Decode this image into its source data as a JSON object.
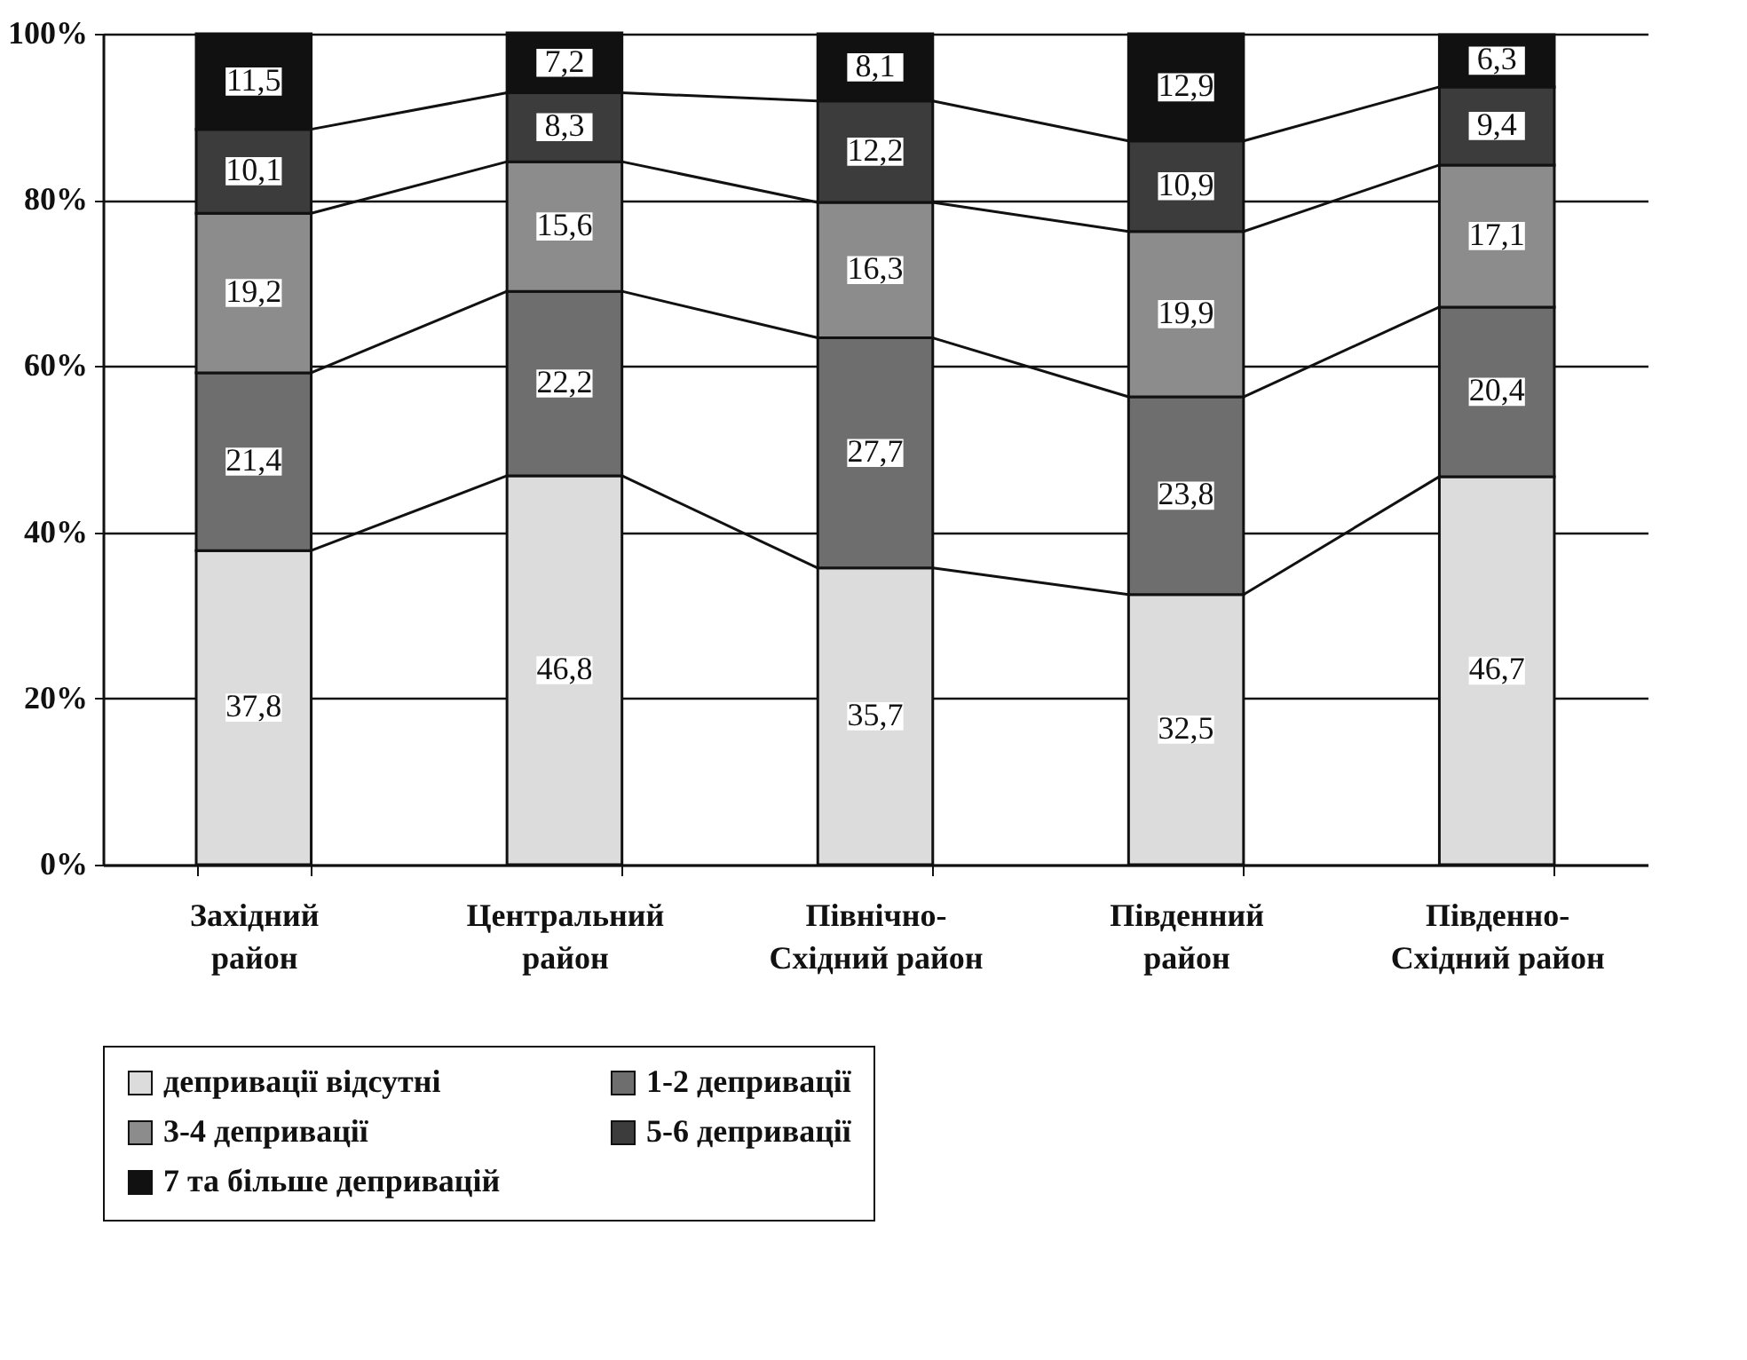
{
  "chart_data": {
    "type": "bar",
    "stacked": true,
    "categories": [
      "Західний район",
      "Центральний район",
      "Північно-Східний район",
      "Південний район",
      "Південно-Східний район"
    ],
    "series": [
      {
        "name": "депривації відсутні",
        "color": "#dcdcdc",
        "values": [
          37.8,
          46.8,
          35.7,
          32.5,
          46.7
        ],
        "value_labels": [
          "37,8",
          "46,8",
          "35,7",
          "32,5",
          "46,7"
        ]
      },
      {
        "name": "1-2 депривації",
        "color": "#6e6e6e",
        "values": [
          21.4,
          22.2,
          27.7,
          23.8,
          20.4
        ],
        "value_labels": [
          "21,4",
          "22,2",
          "27,7",
          "23,8",
          "20,4"
        ]
      },
      {
        "name": "3-4 депривації",
        "color": "#8c8c8c",
        "values": [
          19.2,
          15.6,
          16.3,
          19.9,
          17.1
        ],
        "value_labels": [
          "19,2",
          "15,6",
          "16,3",
          "19,9",
          "17,1"
        ]
      },
      {
        "name": "5-6 депривації",
        "color": "#3c3c3c",
        "values": [
          10.1,
          8.3,
          12.2,
          10.9,
          9.4
        ],
        "value_labels": [
          "10,1",
          "8,3",
          "12,2",
          "10,9",
          "9,4"
        ]
      },
      {
        "name": "7 та більше депривацій",
        "color": "#111111",
        "values": [
          11.5,
          7.2,
          8.1,
          12.9,
          6.3
        ],
        "value_labels": [
          "11,5",
          "7,2",
          "8,1",
          "12,9",
          "6,3"
        ]
      }
    ],
    "ylim": [
      0,
      100
    ],
    "yticks": [
      {
        "value": 0,
        "label": "0%"
      },
      {
        "value": 20,
        "label": "20%"
      },
      {
        "value": 40,
        "label": "40%"
      },
      {
        "value": 60,
        "label": "60%"
      },
      {
        "value": 80,
        "label": "80%"
      },
      {
        "value": 100,
        "label": "100%"
      }
    ],
    "grid": "y",
    "legend": "bottom"
  }
}
